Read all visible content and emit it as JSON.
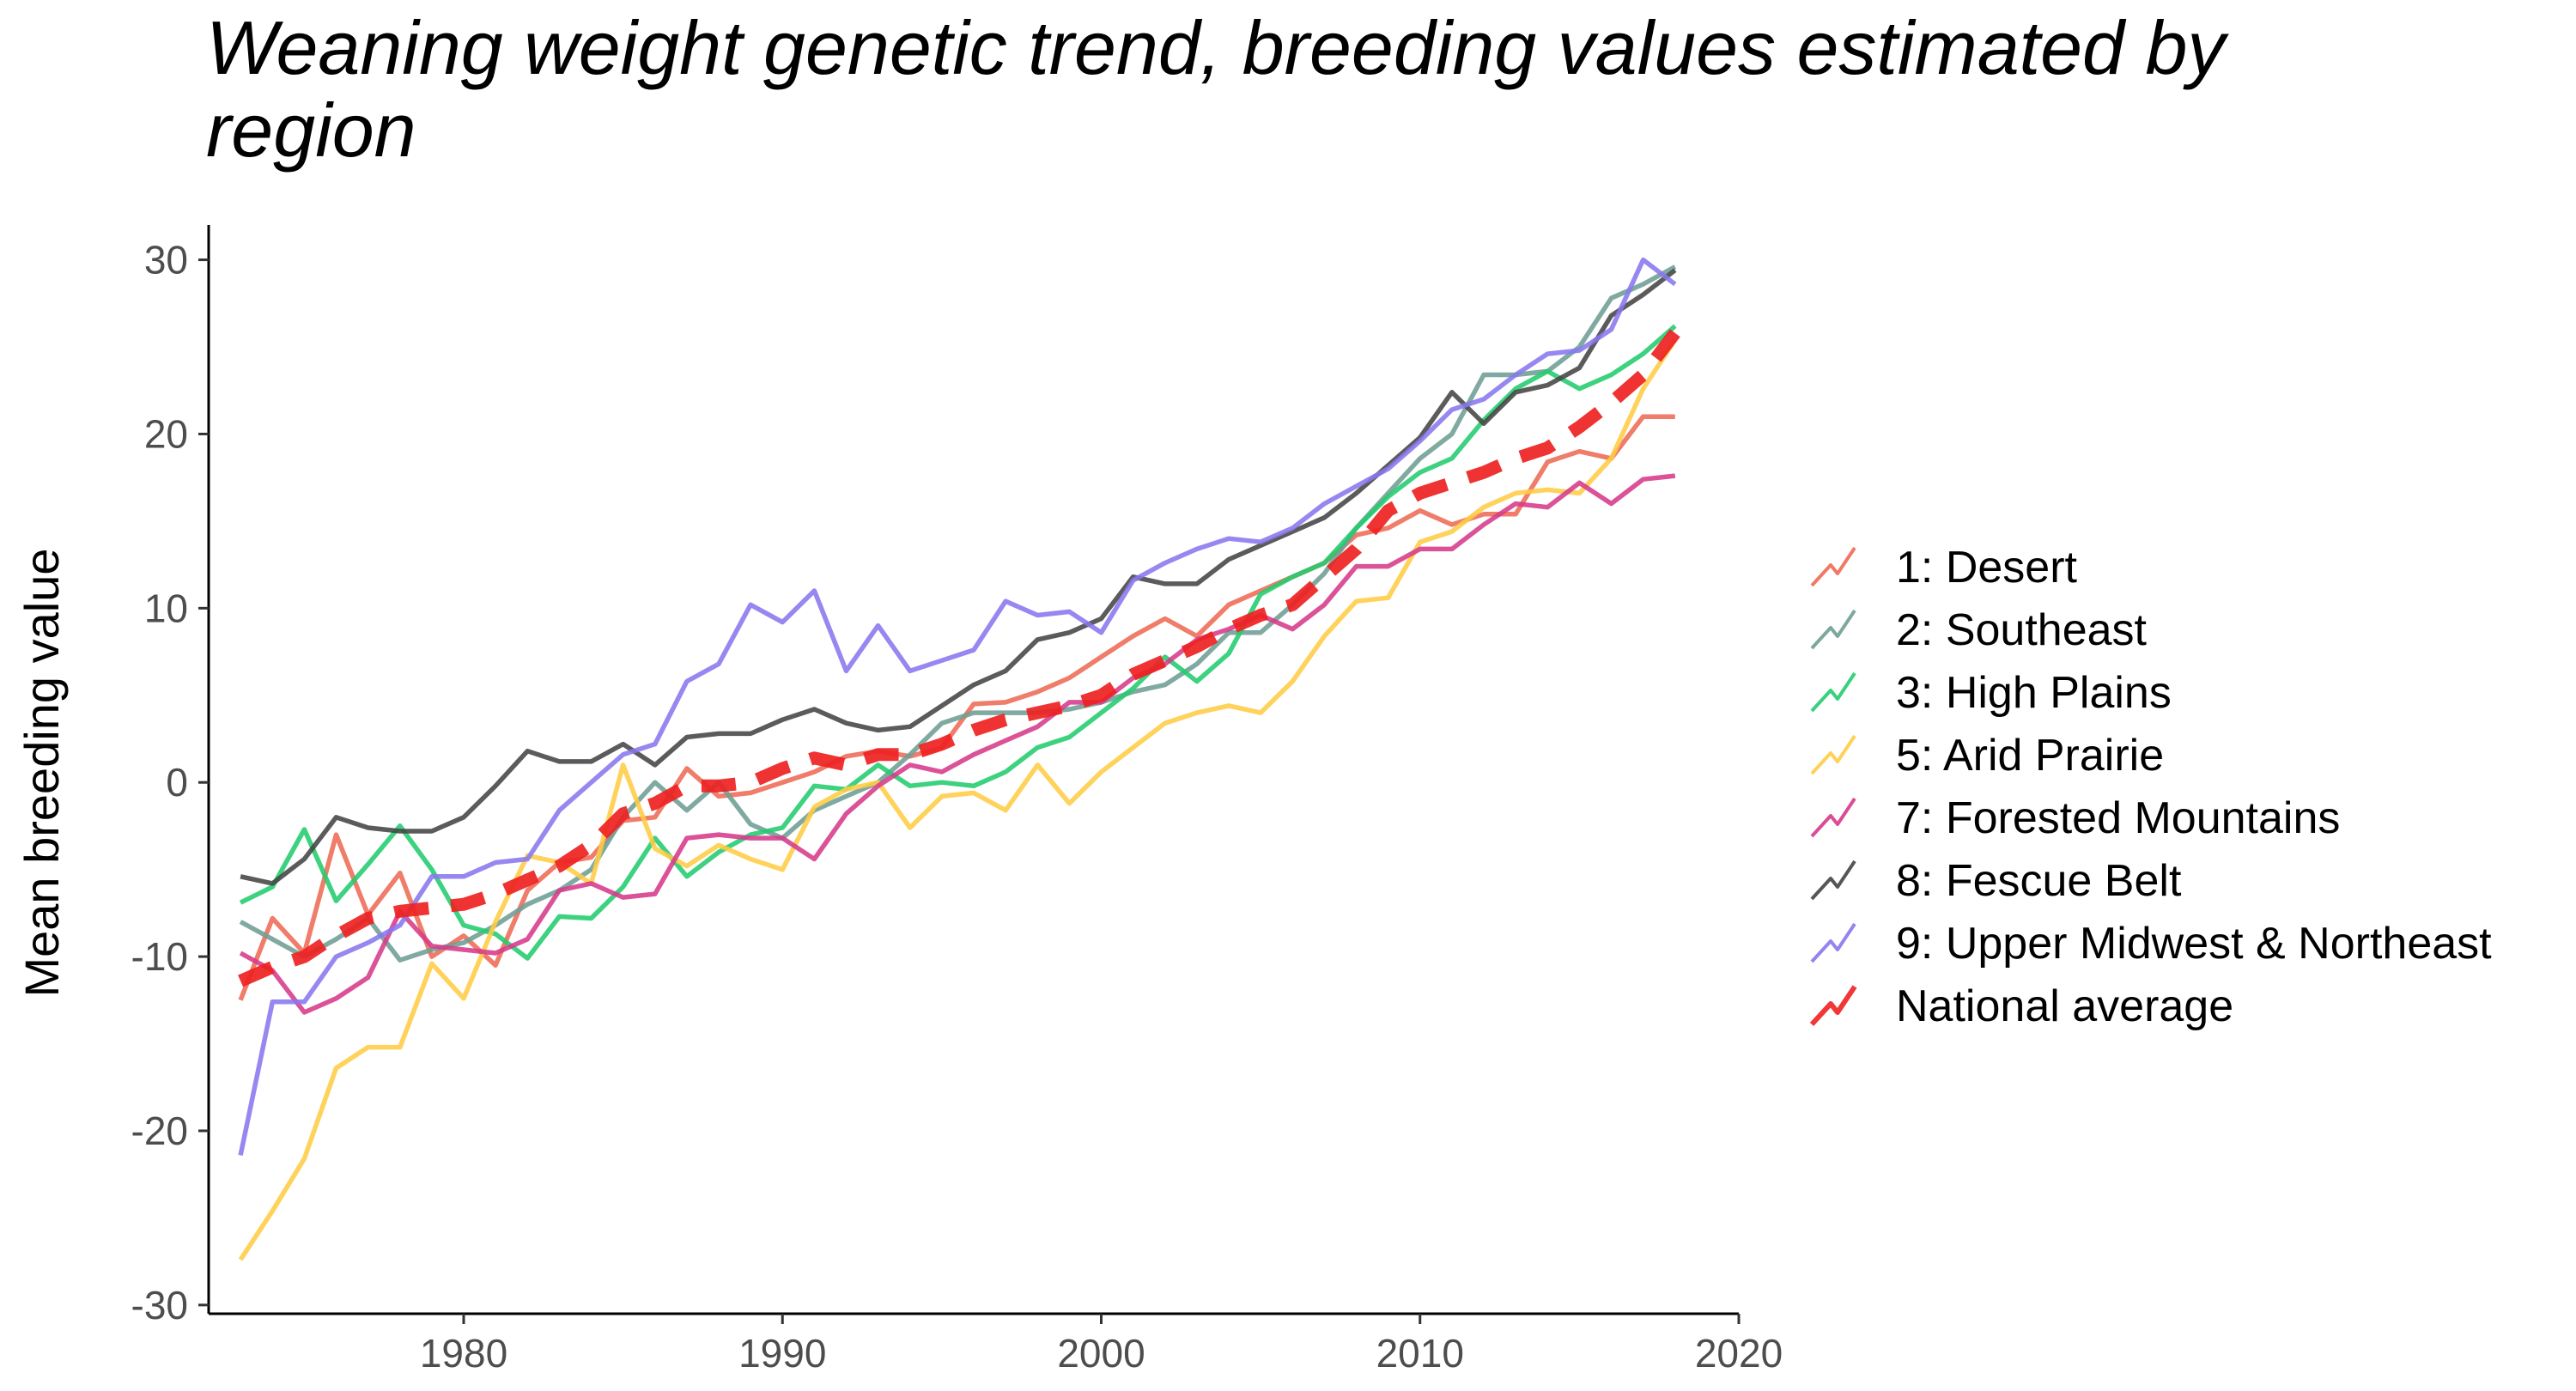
{
  "chart_data": {
    "type": "line",
    "title": "Weaning weight genetic trend, breeding values estimated by region",
    "xlabel": "",
    "ylabel": "Mean breeding value",
    "xlim": [
      1972,
      2020
    ],
    "ylim": [
      -30.5,
      32
    ],
    "xticks": [
      1980,
      1990,
      2000,
      2010,
      2020
    ],
    "yticks": [
      30,
      20,
      10,
      0,
      -10,
      -20,
      -30
    ],
    "legend_position": "right",
    "grid": false,
    "x": [
      1973,
      1974,
      1975,
      1976,
      1977,
      1978,
      1979,
      1980,
      1981,
      1982,
      1983,
      1984,
      1985,
      1986,
      1987,
      1988,
      1989,
      1990,
      1991,
      1992,
      1993,
      1994,
      1995,
      1996,
      1997,
      1998,
      1999,
      2000,
      2001,
      2002,
      2003,
      2004,
      2005,
      2006,
      2007,
      2008,
      2009,
      2010,
      2011,
      2012,
      2013,
      2014,
      2015,
      2016,
      2017,
      2018
    ],
    "series": [
      {
        "name": "1: Desert",
        "color": "#ee6a55",
        "dashed": false,
        "values": [
          -12.5,
          -7.8,
          -9.8,
          -3,
          -7.6,
          -5.2,
          -10,
          -8.8,
          -10.5,
          -6.2,
          -4.6,
          -4.3,
          -2.2,
          -2.0,
          0.8,
          -0.8,
          -0.6,
          0,
          0.6,
          1.5,
          1.8,
          1.5,
          2.0,
          4.5,
          4.6,
          5.2,
          6.0,
          7.2,
          8.4,
          9.4,
          8.4,
          10.2,
          11.0,
          11.8,
          12.6,
          14.2,
          14.6,
          15.6,
          14.8,
          15.4,
          15.4,
          18.4,
          19.0,
          18.6,
          21.0,
          21.0
        ]
      },
      {
        "name": "2: Southeast",
        "color": "#6e9e94",
        "dashed": false,
        "values": [
          -8,
          -9,
          -10,
          -9,
          -7.8,
          -10.2,
          -9.6,
          -9.2,
          -8.2,
          -7,
          -6.2,
          -5,
          -2,
          0,
          -1.6,
          0,
          -2.4,
          -3.2,
          -1.6,
          -0.8,
          0,
          1.6,
          3.4,
          4.0,
          4.0,
          4.0,
          4.2,
          4.6,
          5.2,
          5.6,
          6.8,
          8.6,
          8.6,
          10.2,
          12.0,
          14.6,
          16.6,
          18.6,
          20.0,
          23.4,
          23.4,
          23.6,
          25.0,
          27.8,
          28.6,
          29.6
        ]
      },
      {
        "name": "3: High Plains",
        "color": "#22cc6e",
        "dashed": false,
        "values": [
          -6.9,
          -6.0,
          -2.7,
          -6.8,
          -4.7,
          -2.5,
          -5.0,
          -8.2,
          -8.7,
          -10.1,
          -7.7,
          -7.8,
          -6.0,
          -3.2,
          -5.4,
          -4.0,
          -3.0,
          -2.6,
          -0.2,
          -0.4,
          1.0,
          -0.2,
          0,
          -0.2,
          0.6,
          2.0,
          2.6,
          4.0,
          5.4,
          7.2,
          5.8,
          7.4,
          10.8,
          11.8,
          12.6,
          14.6,
          16.4,
          17.8,
          18.6,
          20.8,
          22.6,
          23.6,
          22.6,
          23.4,
          24.6,
          26.2
        ]
      },
      {
        "name": "5: Arid Prairie",
        "color": "#ffcc44",
        "dashed": false,
        "values": [
          -27.4,
          -24.6,
          -21.6,
          -16.4,
          -15.2,
          -15.2,
          -10.4,
          -12.4,
          -8.0,
          -4.2,
          -4.6,
          -5.8,
          1.0,
          -3.8,
          -4.8,
          -3.6,
          -4.4,
          -5.0,
          -1.4,
          -0.4,
          0,
          -2.6,
          -0.8,
          -0.6,
          -1.6,
          1.0,
          -1.2,
          0.6,
          2.0,
          3.4,
          4.0,
          4.4,
          4.0,
          5.8,
          8.4,
          10.4,
          10.6,
          13.8,
          14.4,
          15.8,
          16.6,
          16.8,
          16.6,
          18.6,
          22.6,
          25.4
        ]
      },
      {
        "name": "7: Forested Mountains",
        "color": "#d63a8a",
        "dashed": false,
        "values": [
          -9.8,
          -10.8,
          -13.2,
          -12.4,
          -11.2,
          -7.4,
          -9.4,
          -9.6,
          -9.8,
          -9.0,
          -6.2,
          -5.8,
          -6.6,
          -6.4,
          -3.2,
          -3.0,
          -3.2,
          -3.2,
          -4.4,
          -1.8,
          -0.2,
          1.0,
          0.6,
          1.6,
          2.4,
          3.2,
          4.6,
          4.6,
          6.0,
          6.8,
          8.2,
          8.8,
          9.6,
          8.8,
          10.2,
          12.4,
          12.4,
          13.4,
          13.4,
          14.8,
          16.0,
          15.8,
          17.2,
          16.0,
          17.4,
          17.6
        ]
      },
      {
        "name": "8: Fescue Belt",
        "color": "#444444",
        "dashed": false,
        "values": [
          -5.4,
          -5.8,
          -4.4,
          -2.0,
          -2.6,
          -2.8,
          -2.8,
          -2.0,
          -0.2,
          1.8,
          1.2,
          1.2,
          2.2,
          1.0,
          2.6,
          2.8,
          2.8,
          3.6,
          4.2,
          3.4,
          3.0,
          3.2,
          4.4,
          5.6,
          6.4,
          8.2,
          8.6,
          9.4,
          11.8,
          11.4,
          11.4,
          12.8,
          13.6,
          14.4,
          15.2,
          16.6,
          18.2,
          19.8,
          22.4,
          20.6,
          22.4,
          22.8,
          23.8,
          26.8,
          28.0,
          29.4
        ]
      },
      {
        "name": "9: Upper Midwest & Northeast",
        "color": "#8877ee",
        "dashed": false,
        "values": [
          -21.4,
          -12.6,
          -12.6,
          -10.0,
          -9.2,
          -8.2,
          -5.4,
          -5.4,
          -4.6,
          -4.4,
          -1.6,
          0,
          1.6,
          2.2,
          5.8,
          6.8,
          10.2,
          9.2,
          11.0,
          6.4,
          9.0,
          6.4,
          7.0,
          7.6,
          10.4,
          9.6,
          9.8,
          8.6,
          11.6,
          12.6,
          13.4,
          14.0,
          13.8,
          14.6,
          16.0,
          17.0,
          18.0,
          19.6,
          21.4,
          22.0,
          23.4,
          24.6,
          24.8,
          26.0,
          30.0,
          28.6
        ]
      },
      {
        "name": "National average",
        "color": "#ee2222",
        "dashed": true,
        "values": [
          -11.4,
          -10.6,
          -10.0,
          -8.8,
          -7.8,
          -7.4,
          -7.2,
          -7.0,
          -6.4,
          -5.6,
          -4.8,
          -3.6,
          -1.8,
          -1.2,
          -0.2,
          -0.2,
          0,
          0.8,
          1.4,
          1.0,
          1.6,
          1.6,
          2.2,
          3.0,
          3.6,
          4.0,
          4.4,
          5.0,
          6.2,
          7.0,
          7.8,
          8.8,
          9.6,
          10.2,
          11.8,
          13.4,
          15.6,
          16.6,
          17.2,
          17.8,
          18.6,
          19.2,
          20.4,
          21.8,
          23.4,
          25.8
        ]
      }
    ]
  }
}
